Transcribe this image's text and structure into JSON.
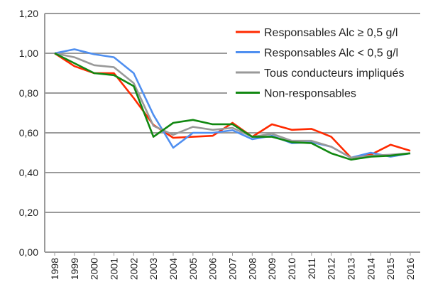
{
  "chart_data": {
    "type": "line",
    "title": "",
    "xlabel": "",
    "ylabel": "",
    "ylim": [
      0,
      1.2
    ],
    "yticks": [
      "0,00",
      "0,20",
      "0,40",
      "0,60",
      "0,80",
      "1,00",
      "1,20"
    ],
    "ytick_values": [
      0,
      0.2,
      0.4,
      0.6,
      0.8,
      1.0,
      1.2
    ],
    "grid": "horizontal",
    "legend_position": "top-right",
    "categories": [
      "1998",
      "1999",
      "2000",
      "2001",
      "2002",
      "2003",
      "2004",
      "2005",
      "2006",
      "2007",
      "2008",
      "2009",
      "2010",
      "2011",
      "2012",
      "2013",
      "2014",
      "2015",
      "2016"
    ],
    "series": [
      {
        "name": "Responsables Alc ≥ 0,5 g/l",
        "color": "#ff2a00",
        "values": [
          1.0,
          0.935,
          0.9,
          0.9,
          0.775,
          0.64,
          0.575,
          0.58,
          0.585,
          0.65,
          0.58,
          0.643,
          0.615,
          0.62,
          0.58,
          0.475,
          0.49,
          0.54,
          0.51
        ]
      },
      {
        "name": "Responsables Alc < 0,5 g/l",
        "color": "#4f8ff0",
        "values": [
          1.0,
          1.02,
          0.995,
          0.98,
          0.9,
          0.69,
          0.525,
          0.6,
          0.6,
          0.613,
          0.568,
          0.585,
          0.548,
          0.553,
          0.53,
          0.475,
          0.5,
          0.48,
          0.497
        ]
      },
      {
        "name": "Tous conducteurs impliqués",
        "color": "#999999",
        "values": [
          1.0,
          0.98,
          0.94,
          0.93,
          0.85,
          0.635,
          0.59,
          0.63,
          0.615,
          0.625,
          0.58,
          0.595,
          0.56,
          0.56,
          0.53,
          0.475,
          0.485,
          0.49,
          0.497
        ]
      },
      {
        "name": "Non-responsables",
        "color": "#118811",
        "values": [
          1.0,
          0.95,
          0.9,
          0.89,
          0.835,
          0.58,
          0.65,
          0.665,
          0.643,
          0.643,
          0.58,
          0.58,
          0.553,
          0.548,
          0.497,
          0.465,
          0.48,
          0.485,
          0.497
        ]
      }
    ]
  }
}
